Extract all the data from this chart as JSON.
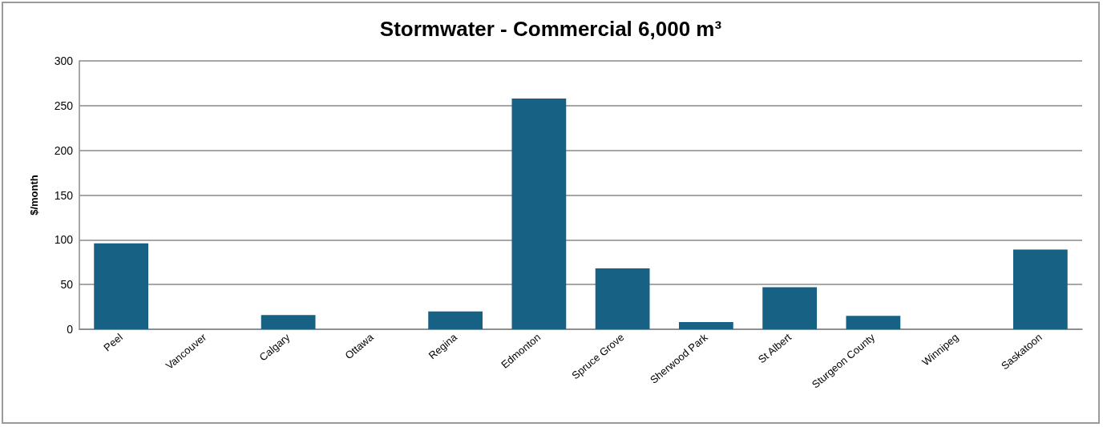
{
  "chart_data": {
    "type": "bar",
    "title": "Stormwater - Commercial 6,000 m³",
    "ylabel": "$/month",
    "categories": [
      "Peel",
      "Vancouver",
      "Calgary",
      "Ottawa",
      "Regina",
      "Edmonton",
      "Spruce Grove",
      "Sherwood Park",
      "St Albert",
      "Sturgeon County",
      "Winnipeg",
      "Saskatoon"
    ],
    "values": [
      96,
      0,
      16,
      0,
      20,
      258,
      68,
      8,
      47,
      15,
      0,
      89
    ],
    "color": "#176184",
    "ylim": [
      0,
      300
    ],
    "yticks": [
      0,
      50,
      100,
      150,
      200,
      250,
      300
    ],
    "grid": "y"
  }
}
